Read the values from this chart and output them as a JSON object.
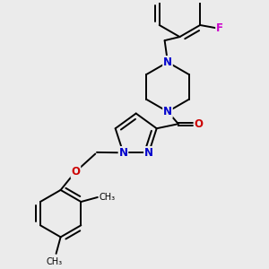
{
  "background_color": "#ebebeb",
  "atom_colors": {
    "N": "#0000cc",
    "O": "#cc0000",
    "F": "#cc00cc"
  },
  "figsize": [
    3.0,
    3.0
  ],
  "dpi": 100,
  "lw": 1.4,
  "font_size": 8.5
}
